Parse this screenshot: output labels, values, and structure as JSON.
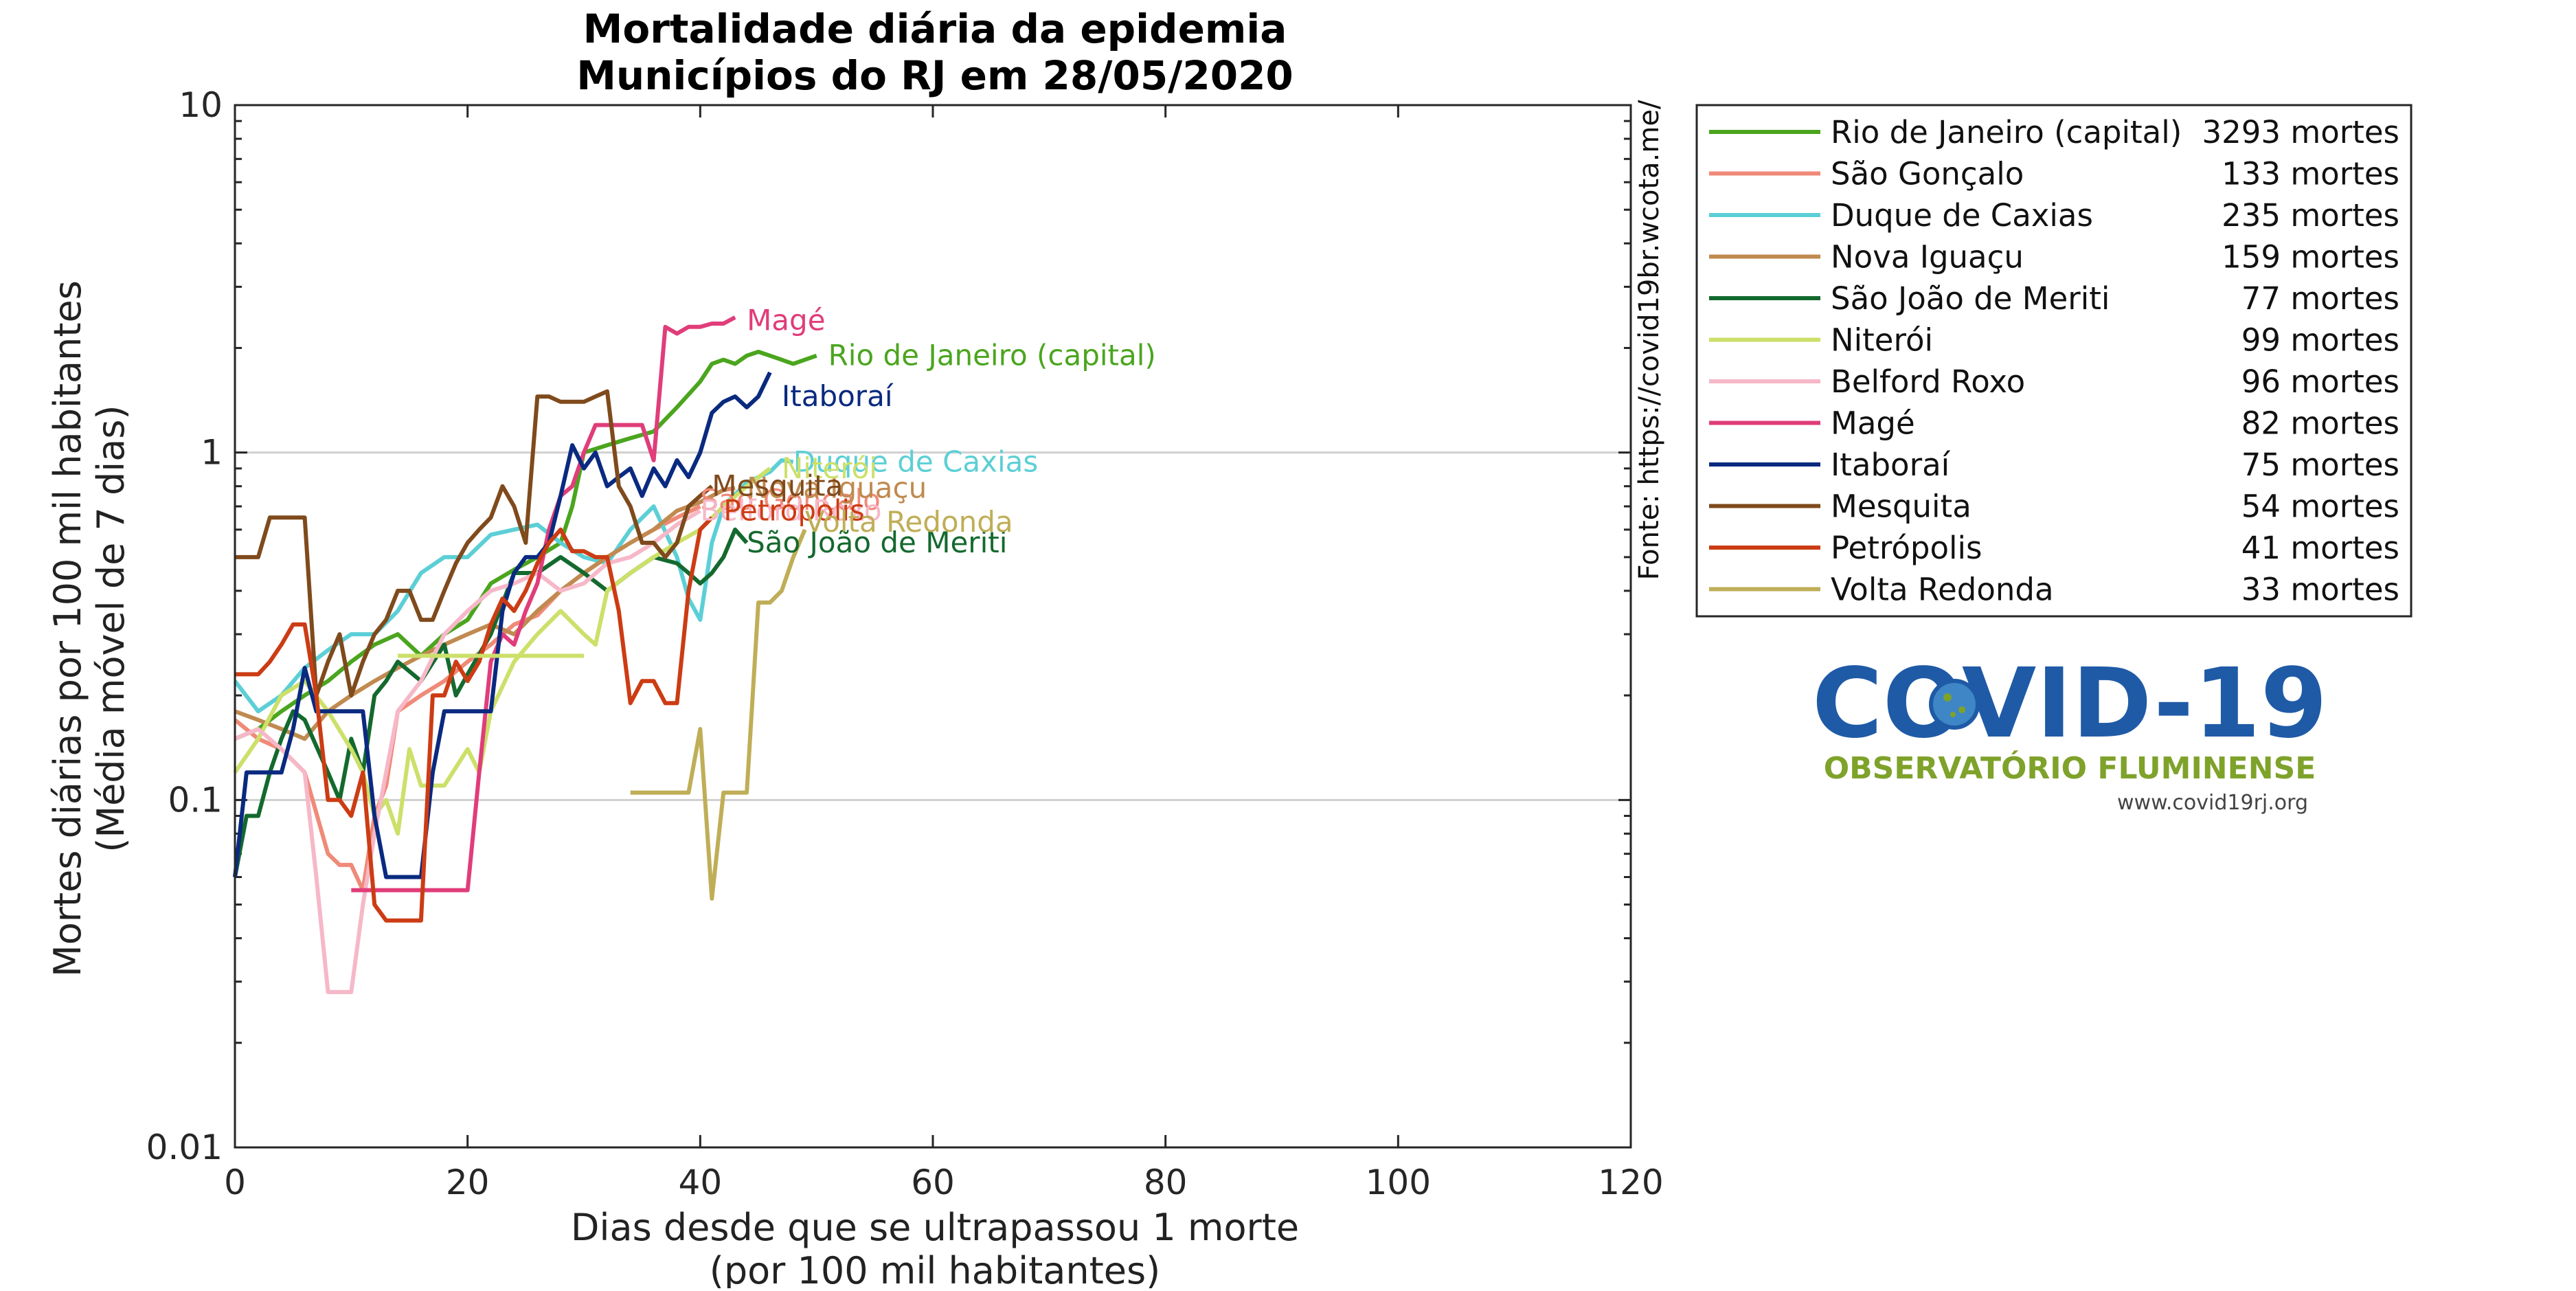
{
  "chart_data": {
    "type": "line",
    "title": [
      "Mortalidade diária da epidemia",
      "Municípios do RJ em 28/05/2020"
    ],
    "xlabel": [
      "Dias desde que se ultrapassou 1 morte",
      "(por 100 mil habitantes)"
    ],
    "ylabel": [
      "Mortes diárias por 100 mil habitantes",
      "(Média móvel de 7 dias)"
    ],
    "x_scale": "linear",
    "y_scale": "log",
    "xlim": [
      0,
      120
    ],
    "ylim": [
      0.01,
      10
    ],
    "x_ticks": [
      0,
      20,
      40,
      60,
      80,
      100,
      120
    ],
    "x_tick_labels": [
      "0",
      "20",
      "40",
      "60",
      "80",
      "100",
      "120"
    ],
    "y_ticks": [
      0.01,
      0.1,
      1,
      10
    ],
    "y_tick_labels": [
      "0.01",
      "0.1",
      "1",
      "10"
    ],
    "grid": "horizontal lines at 0.1 and 1",
    "right_axis_note": "Fonte: https://covid19br.wcota.me/",
    "legend_position": "top-right outside plot",
    "series": [
      {
        "name": "Rio de Janeiro (capital)",
        "deaths_label": "3293 mortes",
        "color": "#4ba51e",
        "label_anchor": [
          51,
          1.9
        ],
        "x": [
          0,
          2,
          4,
          6,
          8,
          10,
          12,
          14,
          16,
          18,
          20,
          22,
          24,
          26,
          28,
          29,
          30,
          32,
          34,
          36,
          38,
          40,
          41,
          42,
          43,
          44,
          45,
          46,
          47,
          48,
          49,
          50
        ],
        "y": [
          0.15,
          0.16,
          0.18,
          0.2,
          0.22,
          0.25,
          0.28,
          0.3,
          0.26,
          0.3,
          0.33,
          0.42,
          0.46,
          0.5,
          0.55,
          0.7,
          1.0,
          1.05,
          1.1,
          1.15,
          1.35,
          1.6,
          1.8,
          1.85,
          1.8,
          1.9,
          1.95,
          1.9,
          1.85,
          1.8,
          1.85,
          1.9
        ]
      },
      {
        "name": "São Gonçalo",
        "deaths_label": "133 mortes",
        "color": "#f08a78",
        "label_anchor": [
          40,
          0.73
        ],
        "x": [
          0,
          2,
          4,
          6,
          8,
          9,
          10,
          11,
          12,
          13,
          14,
          16,
          18,
          20,
          22,
          24,
          26,
          28,
          30,
          32,
          34,
          36,
          38,
          40
        ],
        "y": [
          0.17,
          0.15,
          0.14,
          0.12,
          0.07,
          0.065,
          0.065,
          0.055,
          0.09,
          0.11,
          0.18,
          0.2,
          0.22,
          0.25,
          0.28,
          0.32,
          0.34,
          0.4,
          0.45,
          0.5,
          0.55,
          0.6,
          0.65,
          0.7
        ]
      },
      {
        "name": "Duque de Caxias",
        "deaths_label": "235 mortes",
        "color": "#5ccfd6",
        "label_anchor": [
          48,
          0.94
        ],
        "x": [
          0,
          2,
          4,
          6,
          8,
          10,
          12,
          14,
          16,
          18,
          20,
          22,
          24,
          26,
          28,
          30,
          32,
          34,
          36,
          38,
          39,
          40,
          41,
          42,
          44,
          46,
          47,
          48
        ],
        "y": [
          0.22,
          0.18,
          0.2,
          0.24,
          0.27,
          0.3,
          0.3,
          0.35,
          0.45,
          0.5,
          0.5,
          0.58,
          0.6,
          0.62,
          0.55,
          0.5,
          0.48,
          0.6,
          0.7,
          0.5,
          0.38,
          0.33,
          0.55,
          0.7,
          0.82,
          0.88,
          0.95,
          0.94
        ]
      },
      {
        "name": "Nova Iguaçu",
        "deaths_label": "159 mortes",
        "color": "#c08a50",
        "label_anchor": [
          44,
          0.79
        ],
        "x": [
          0,
          2,
          4,
          6,
          8,
          10,
          12,
          14,
          16,
          18,
          20,
          22,
          24,
          26,
          28,
          30,
          32,
          34,
          36,
          38,
          40,
          42,
          43
        ],
        "y": [
          0.18,
          0.17,
          0.16,
          0.15,
          0.18,
          0.2,
          0.22,
          0.24,
          0.26,
          0.28,
          0.3,
          0.32,
          0.3,
          0.35,
          0.4,
          0.45,
          0.5,
          0.55,
          0.6,
          0.68,
          0.72,
          0.78,
          0.79
        ]
      },
      {
        "name": "São João de Meriti",
        "deaths_label": "77 mortes",
        "color": "#14692e",
        "label_anchor": [
          44,
          0.55
        ],
        "x": [
          0,
          1,
          2,
          3,
          4,
          5,
          6,
          8,
          9,
          10,
          11,
          12,
          13,
          14,
          16,
          18,
          19,
          20,
          22,
          24,
          26,
          28,
          30,
          32,
          34,
          36,
          38,
          39,
          40,
          41,
          42,
          43,
          44
        ],
        "y": [
          0.06,
          0.09,
          0.09,
          0.12,
          0.15,
          0.18,
          0.17,
          0.12,
          0.1,
          0.15,
          0.12,
          0.2,
          0.22,
          0.25,
          0.22,
          0.28,
          0.2,
          0.23,
          0.3,
          0.45,
          0.45,
          0.5,
          0.45,
          0.4,
          0.45,
          0.5,
          0.48,
          0.45,
          0.42,
          0.45,
          0.5,
          0.6,
          0.55
        ]
      },
      {
        "name": "Niterói",
        "deaths_label": "99 mortes",
        "color": "#cce06a",
        "label_anchor": [
          47,
          0.9
        ],
        "x": [
          0,
          2,
          4,
          6,
          8,
          10,
          11,
          12,
          13,
          14,
          15,
          16,
          18,
          20,
          21,
          22,
          24,
          26,
          28,
          30,
          31,
          32,
          34,
          36,
          38,
          40,
          42,
          44,
          46
        ],
        "y": [
          0.12,
          0.15,
          0.2,
          0.22,
          0.18,
          0.14,
          0.12,
          0.09,
          0.1,
          0.08,
          0.14,
          0.11,
          0.11,
          0.14,
          0.12,
          0.18,
          0.25,
          0.3,
          0.35,
          0.3,
          0.28,
          0.4,
          0.45,
          0.5,
          0.55,
          0.6,
          0.7,
          0.8,
          0.9
        ]
      },
      {
        "name": "Belford Roxo",
        "deaths_label": "96 mortes",
        "color": "#f6b8c8",
        "label_anchor": [
          40,
          0.68
        ],
        "x": [
          0,
          2,
          4,
          6,
          7,
          8,
          9,
          10,
          11,
          12,
          13,
          14,
          16,
          18,
          20,
          22,
          24,
          26,
          28,
          30,
          32,
          34,
          36,
          38,
          40
        ],
        "y": [
          0.15,
          0.16,
          0.14,
          0.12,
          0.06,
          0.028,
          0.028,
          0.028,
          0.05,
          0.08,
          0.12,
          0.18,
          0.22,
          0.3,
          0.35,
          0.4,
          0.42,
          0.45,
          0.4,
          0.42,
          0.48,
          0.5,
          0.55,
          0.62,
          0.68
        ]
      },
      {
        "name": "Magé",
        "deaths_label": "82 mortes",
        "color": "#e03d7a",
        "label_anchor": [
          44,
          2.4
        ],
        "x": [
          10,
          11,
          12,
          13,
          14,
          15,
          16,
          17,
          18,
          19,
          20,
          21,
          22,
          23,
          24,
          25,
          26,
          27,
          28,
          29,
          30,
          31,
          32,
          33,
          34,
          35,
          36,
          37,
          38,
          39,
          40,
          41,
          42,
          43
        ],
        "y": [
          0.055,
          0.055,
          0.055,
          0.055,
          0.055,
          0.055,
          0.055,
          0.055,
          0.055,
          0.055,
          0.055,
          0.12,
          0.25,
          0.3,
          0.28,
          0.35,
          0.42,
          0.6,
          0.75,
          0.8,
          1.0,
          1.2,
          1.2,
          1.2,
          1.2,
          1.2,
          0.95,
          2.3,
          2.2,
          2.3,
          2.3,
          2.35,
          2.35,
          2.45
        ]
      },
      {
        "name": "Itaboraí",
        "deaths_label": "75 mortes",
        "color": "#0a2a80",
        "label_anchor": [
          47,
          1.45
        ],
        "x": [
          0,
          1,
          2,
          3,
          4,
          5,
          6,
          7,
          8,
          9,
          10,
          11,
          12,
          13,
          14,
          15,
          16,
          17,
          18,
          19,
          20,
          21,
          22,
          23,
          24,
          25,
          26,
          27,
          28,
          29,
          30,
          31,
          32,
          33,
          34,
          35,
          36,
          37,
          38,
          39,
          40,
          41,
          42,
          43,
          44,
          45,
          46
        ],
        "y": [
          0.06,
          0.12,
          0.12,
          0.12,
          0.12,
          0.16,
          0.24,
          0.18,
          0.18,
          0.18,
          0.18,
          0.18,
          0.09,
          0.06,
          0.06,
          0.06,
          0.06,
          0.12,
          0.18,
          0.18,
          0.18,
          0.18,
          0.18,
          0.35,
          0.45,
          0.5,
          0.5,
          0.55,
          0.75,
          1.05,
          0.9,
          1.0,
          0.8,
          0.85,
          0.9,
          0.75,
          0.9,
          0.8,
          0.95,
          0.85,
          1.0,
          1.3,
          1.4,
          1.45,
          1.35,
          1.45,
          1.7
        ]
      },
      {
        "name": "Mesquita",
        "deaths_label": "54 mortes",
        "color": "#7f4a1c",
        "label_anchor": [
          41,
          0.8
        ],
        "x": [
          0,
          1,
          2,
          3,
          4,
          5,
          6,
          7,
          8,
          9,
          10,
          11,
          12,
          13,
          14,
          15,
          16,
          17,
          18,
          19,
          20,
          21,
          22,
          23,
          24,
          25,
          26,
          27,
          28,
          29,
          30,
          31,
          32,
          33,
          34,
          35,
          36,
          37,
          38,
          39,
          40,
          41
        ],
        "y": [
          0.5,
          0.5,
          0.5,
          0.65,
          0.65,
          0.65,
          0.65,
          0.2,
          0.25,
          0.3,
          0.2,
          0.25,
          0.3,
          0.33,
          0.4,
          0.4,
          0.33,
          0.33,
          0.4,
          0.48,
          0.55,
          0.6,
          0.65,
          0.8,
          0.7,
          0.55,
          1.45,
          1.45,
          1.4,
          1.4,
          1.4,
          1.45,
          1.5,
          0.8,
          0.7,
          0.55,
          0.55,
          0.5,
          0.55,
          0.7,
          0.75,
          0.8
        ]
      },
      {
        "name": "Petrópolis",
        "deaths_label": "41 mortes",
        "color": "#cc3c14",
        "label_anchor": [
          42,
          0.68
        ],
        "x": [
          0,
          1,
          2,
          3,
          4,
          5,
          6,
          7,
          8,
          9,
          10,
          11,
          12,
          13,
          14,
          15,
          16,
          17,
          18,
          19,
          20,
          21,
          22,
          23,
          24,
          25,
          26,
          27,
          28,
          29,
          30,
          31,
          32,
          33,
          34,
          35,
          36,
          37,
          38,
          39,
          40,
          41
        ],
        "y": [
          0.23,
          0.23,
          0.23,
          0.25,
          0.28,
          0.32,
          0.32,
          0.2,
          0.1,
          0.1,
          0.09,
          0.12,
          0.05,
          0.045,
          0.045,
          0.045,
          0.045,
          0.2,
          0.2,
          0.25,
          0.22,
          0.25,
          0.32,
          0.38,
          0.35,
          0.4,
          0.48,
          0.55,
          0.6,
          0.52,
          0.52,
          0.5,
          0.5,
          0.35,
          0.19,
          0.22,
          0.22,
          0.19,
          0.19,
          0.4,
          0.6,
          0.65
        ]
      },
      {
        "name": "Volta Redonda",
        "deaths_label": "33 mortes",
        "color": "#bfae57",
        "label_anchor": [
          49,
          0.63
        ],
        "x": [
          34,
          35,
          36,
          37,
          38,
          39,
          40,
          41,
          42,
          43,
          44,
          45,
          46,
          47,
          48,
          49
        ],
        "y": [
          0.105,
          0.105,
          0.105,
          0.105,
          0.105,
          0.105,
          0.16,
          0.052,
          0.105,
          0.105,
          0.105,
          0.37,
          0.37,
          0.4,
          0.5,
          0.6
        ]
      },
      {
        "name": "",
        "deaths_label": "",
        "color": "#cce06a",
        "label_anchor": null,
        "x": [
          14,
          16,
          18,
          20,
          22,
          24,
          26,
          28,
          30
        ],
        "y": [
          0.26,
          0.26,
          0.26,
          0.26,
          0.26,
          0.26,
          0.26,
          0.26,
          0.26
        ]
      }
    ]
  },
  "logo": {
    "main_text": "COVID-19",
    "subtitle": "OBSERVATÓRIO FLUMINENSE",
    "url": "www.covid19rj.org",
    "colors": {
      "blue": "#1f5aa6",
      "green": "#7ea22a",
      "url_text": "#444444"
    }
  }
}
